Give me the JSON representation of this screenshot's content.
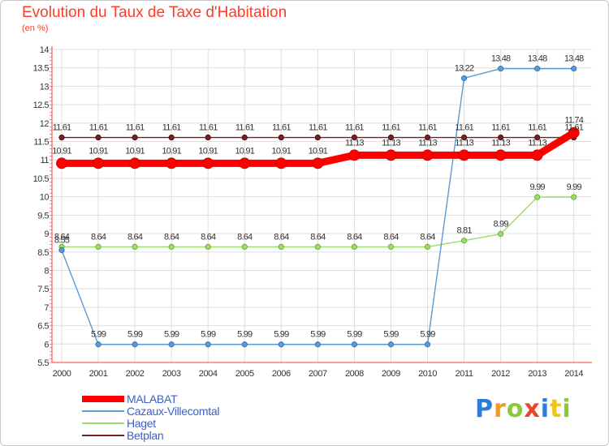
{
  "chart_data": {
    "type": "line",
    "title": "Evolution du Taux de Taxe d'Habitation",
    "subtitle": "(en %)",
    "x": [
      "2000",
      "2001",
      "2002",
      "2003",
      "2004",
      "2005",
      "2006",
      "2007",
      "2008",
      "2009",
      "2010",
      "2011",
      "2012",
      "2013",
      "2014"
    ],
    "ylim": [
      5.5,
      14
    ],
    "yticks": [
      "5.5",
      "6",
      "6.5",
      "7",
      "7.5",
      "8",
      "8.5",
      "9",
      "9.5",
      "10",
      "10.5",
      "11",
      "11.5",
      "12",
      "12.5",
      "13",
      "13.5",
      "14"
    ],
    "grid": true,
    "legend_position": "bottom-left",
    "series": [
      {
        "name": "MALABAT",
        "color": "#ff0000",
        "values": [
          10.91,
          10.91,
          10.91,
          10.91,
          10.91,
          10.91,
          10.91,
          10.91,
          11.13,
          11.13,
          11.13,
          11.13,
          11.13,
          11.13,
          11.74
        ],
        "labels": [
          "10.91",
          "10.91",
          "10.91",
          "10.91",
          "10.91",
          "10.91",
          "10.91",
          "10.91",
          "11.13",
          "11.13",
          "11.13",
          "11.13",
          "11.13",
          "11.13",
          "11.74"
        ]
      },
      {
        "name": "Cazaux-Villecomtal",
        "color": "#5a9ad6",
        "values": [
          8.55,
          5.99,
          5.99,
          5.99,
          5.99,
          5.99,
          5.99,
          5.99,
          5.99,
          5.99,
          5.99,
          13.22,
          13.48,
          13.48,
          13.48
        ],
        "labels": [
          "8.55",
          "5.99",
          "5.99",
          "5.99",
          "5.99",
          "5.99",
          "5.99",
          "5.99",
          "5.99",
          "5.99",
          "5.99",
          "13.22",
          "13.48",
          "13.48",
          "13.48"
        ]
      },
      {
        "name": "Haget",
        "color": "#99dd66",
        "values": [
          8.64,
          8.64,
          8.64,
          8.64,
          8.64,
          8.64,
          8.64,
          8.64,
          8.64,
          8.64,
          8.64,
          8.81,
          8.99,
          9.99,
          9.99
        ],
        "labels": [
          "8.64",
          "8.64",
          "8.64",
          "8.64",
          "8.64",
          "8.64",
          "8.64",
          "8.64",
          "8.64",
          "8.64",
          "8.64",
          "8.81",
          "8.99",
          "9.99",
          "9.99"
        ]
      },
      {
        "name": "Betplan",
        "color": "#7a1f1f",
        "values": [
          11.61,
          11.61,
          11.61,
          11.61,
          11.61,
          11.61,
          11.61,
          11.61,
          11.61,
          11.61,
          11.61,
          11.61,
          11.61,
          11.61,
          11.61
        ],
        "labels": [
          "11.61",
          "11.61",
          "11.61",
          "11.61",
          "11.61",
          "11.61",
          "11.61",
          "11.61",
          "11.61",
          "11.61",
          "11.61",
          "11.61",
          "11.61",
          "11.61",
          "11.61"
        ]
      }
    ]
  },
  "brand": {
    "letters": [
      "P",
      "r",
      "o",
      "x",
      "i",
      "t",
      "i"
    ],
    "colors": [
      "#2f7bd8",
      "#f29a1d",
      "#8ac83c",
      "#e8452b",
      "#2f7bd8",
      "#f2c21d",
      "#8ac83c"
    ]
  }
}
